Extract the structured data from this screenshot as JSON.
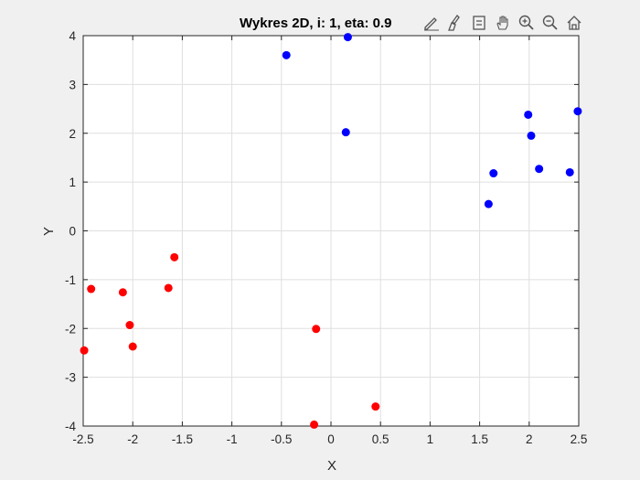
{
  "chart_data": {
    "type": "scatter",
    "title": "Wykres 2D, i: 1, eta: 0.9",
    "xlabel": "X",
    "ylabel": "Y",
    "xlim": [
      -2.5,
      2.5
    ],
    "ylim": [
      -4,
      4
    ],
    "xticks": [
      -2.5,
      -2,
      -1.5,
      -1,
      -0.5,
      0,
      0.5,
      1,
      1.5,
      2,
      2.5
    ],
    "xtick_labels": [
      "-2.5",
      "-2",
      "-1.5",
      "-1",
      "-0.5",
      "0",
      "0.5",
      "1",
      "1.5",
      "2",
      "2.5"
    ],
    "yticks": [
      -4,
      -3,
      -2,
      -1,
      0,
      1,
      2,
      3,
      4
    ],
    "ytick_labels": [
      "-4",
      "-3",
      "-2",
      "-1",
      "0",
      "1",
      "2",
      "3",
      "4"
    ],
    "grid": true,
    "series": [
      {
        "color": "#0000ff",
        "points": [
          {
            "x": -0.45,
            "y": 3.6
          },
          {
            "x": 0.17,
            "y": 3.97
          },
          {
            "x": 0.15,
            "y": 2.02
          },
          {
            "x": 1.59,
            "y": 0.55
          },
          {
            "x": 1.64,
            "y": 1.18
          },
          {
            "x": 1.99,
            "y": 2.38
          },
          {
            "x": 2.02,
            "y": 1.95
          },
          {
            "x": 2.1,
            "y": 1.27
          },
          {
            "x": 2.41,
            "y": 1.2
          },
          {
            "x": 2.49,
            "y": 2.45
          }
        ]
      },
      {
        "color": "#ff0000",
        "points": [
          {
            "x": -2.49,
            "y": -2.45
          },
          {
            "x": -2.42,
            "y": -1.19
          },
          {
            "x": -2.1,
            "y": -1.26
          },
          {
            "x": -2.03,
            "y": -1.93
          },
          {
            "x": -2.0,
            "y": -2.37
          },
          {
            "x": -1.64,
            "y": -1.17
          },
          {
            "x": -1.58,
            "y": -0.54
          },
          {
            "x": -0.15,
            "y": -2.01
          },
          {
            "x": -0.17,
            "y": -3.97
          },
          {
            "x": 0.45,
            "y": -3.6
          }
        ]
      }
    ]
  },
  "toolbar": {
    "icons": [
      "edit-pen-icon",
      "brush-icon",
      "data-tip-icon",
      "pan-hand-icon",
      "zoom-in-icon",
      "zoom-out-icon",
      "home-icon"
    ]
  }
}
